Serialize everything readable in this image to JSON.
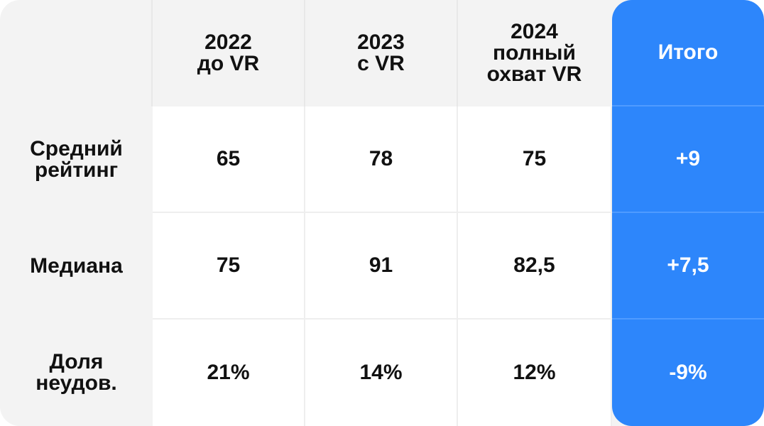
{
  "columns": [
    {
      "label": "2022\nдо VR"
    },
    {
      "label": "2023\nс VR"
    },
    {
      "label": "2024\nполный\nохват VR"
    }
  ],
  "total_header": "Итого",
  "rows": [
    {
      "label": "Средний\nрейтинг",
      "values": [
        "65",
        "78",
        "75"
      ],
      "total": "+9"
    },
    {
      "label": "Медиана",
      "values": [
        "75",
        "91",
        "82,5"
      ],
      "total": "+7,5"
    },
    {
      "label": "Доля\nнеудов.",
      "values": [
        "21%",
        "14%",
        "12%"
      ],
      "total": "-9%"
    }
  ],
  "colors": {
    "accent": "#2d86fb",
    "header_bg": "#f3f3f3",
    "cell_bg": "#ffffff",
    "text": "#111111"
  }
}
